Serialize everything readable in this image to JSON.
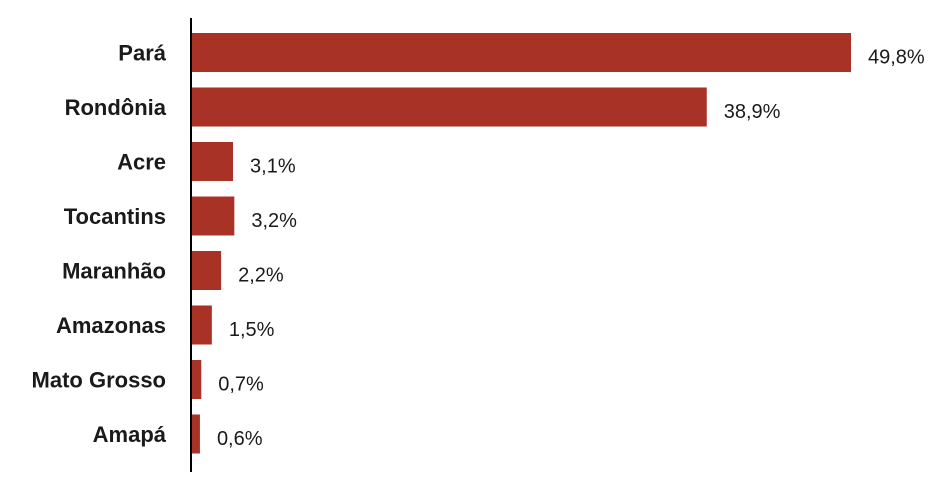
{
  "chart_data": {
    "type": "bar",
    "orientation": "horizontal",
    "categories": [
      "Pará",
      "Rondônia",
      "Acre",
      "Tocantins",
      "Maranhão",
      "Amazonas",
      "Mato Grosso",
      "Amapá"
    ],
    "values": [
      49.8,
      38.9,
      3.1,
      3.2,
      2.2,
      1.5,
      0.7,
      0.6
    ],
    "value_labels": [
      "49,8%",
      "38,9%",
      "3,1%",
      "3,2%",
      "2,2%",
      "1,5%",
      "0,7%",
      "0,6%"
    ],
    "bar_color": "#a93226",
    "grid": false,
    "legend": "none",
    "xlim": [
      0,
      50
    ]
  }
}
